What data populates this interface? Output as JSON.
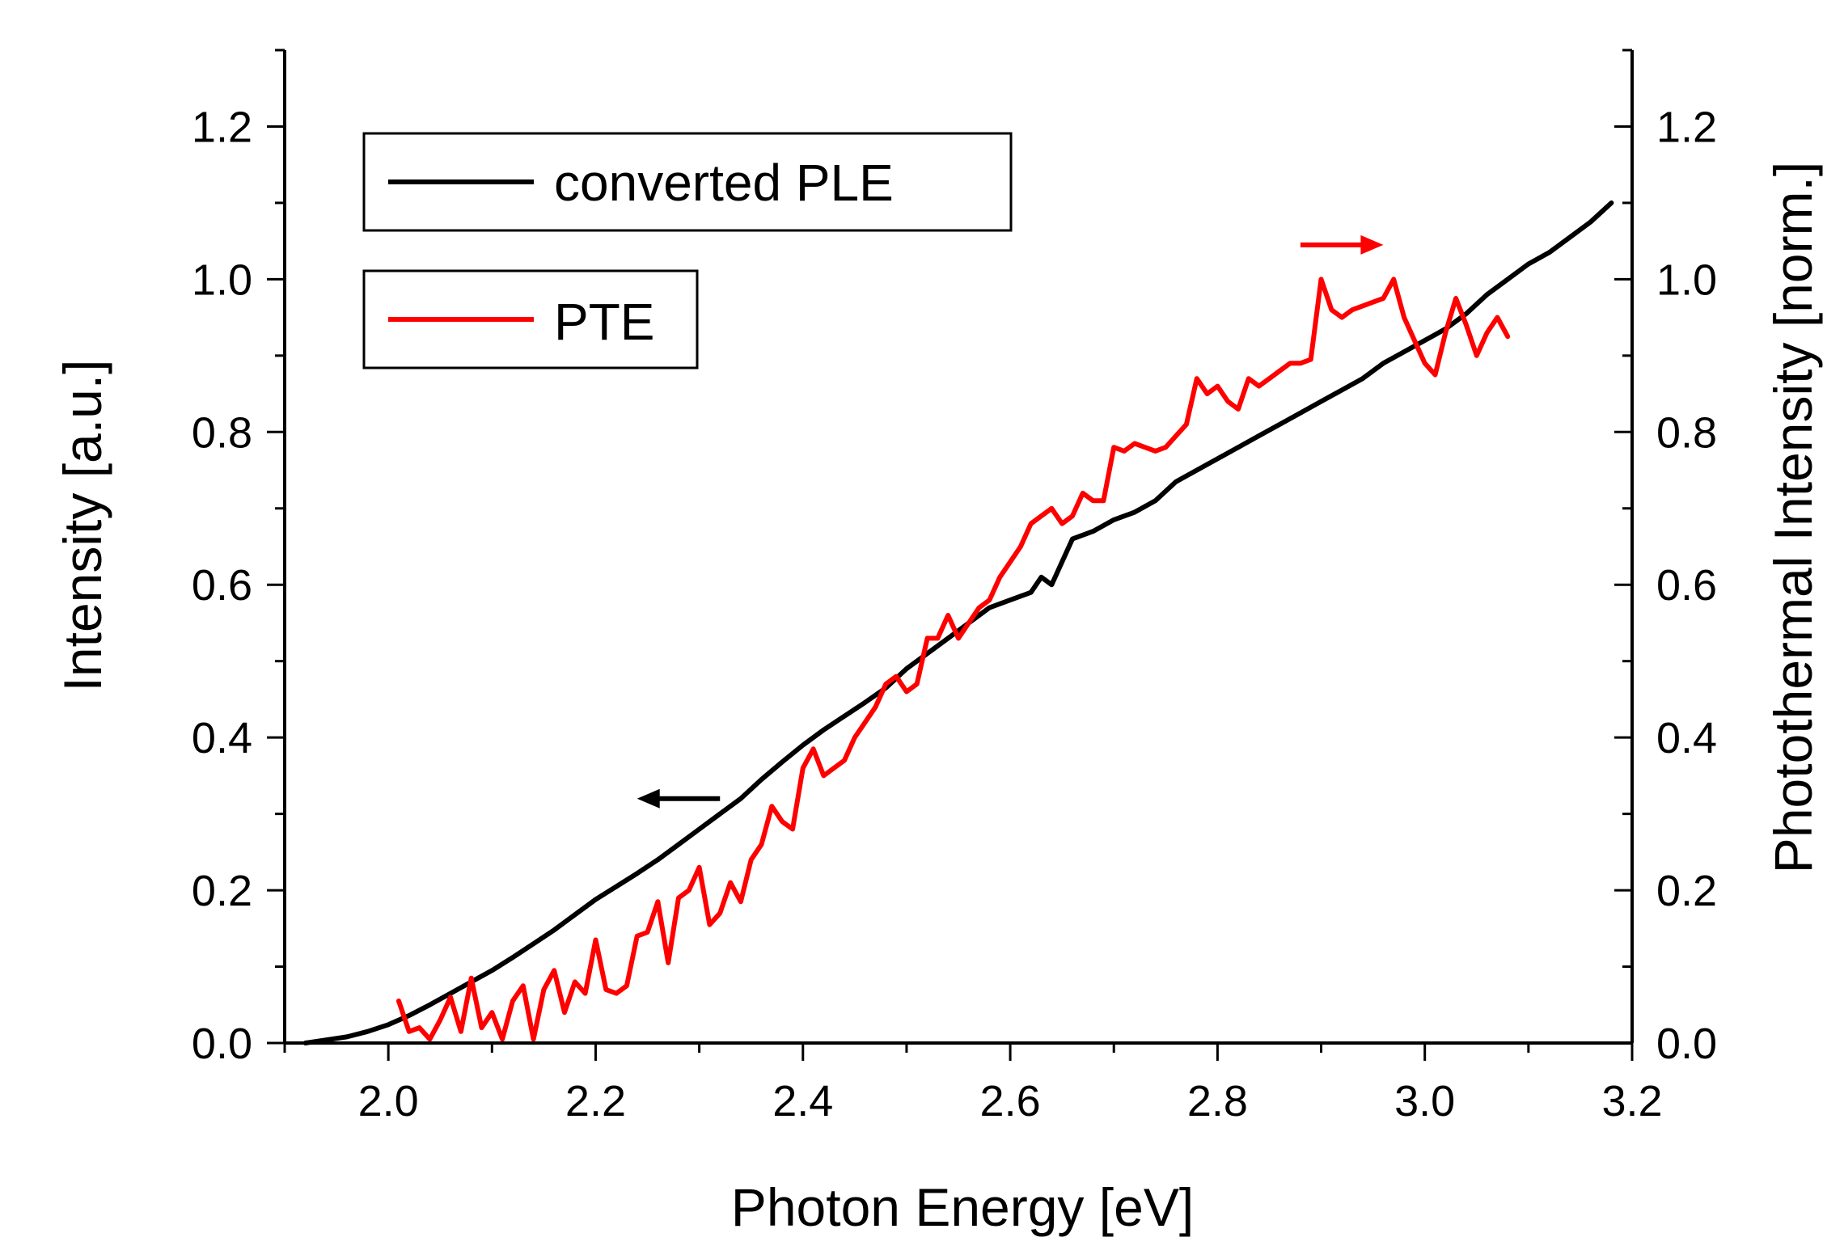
{
  "chart_data": {
    "type": "line",
    "title": "",
    "xlabel": "Photon Energy [eV]",
    "ylabel": "Intensity [a.u.]",
    "ylabel_right": "Photothermal Intensity [norm.]",
    "xlim": [
      1.9,
      3.2
    ],
    "ylim": [
      0.0,
      1.3
    ],
    "ylim_right": [
      0.0,
      1.3
    ],
    "x_ticks": [
      "2.0",
      "2.2",
      "2.4",
      "2.6",
      "2.8",
      "3.0",
      "3.2"
    ],
    "y_ticks": [
      "0.0",
      "0.2",
      "0.4",
      "0.6",
      "0.8",
      "1.0",
      "1.2"
    ],
    "y_ticks_right": [
      "0.0",
      "0.2",
      "0.4",
      "0.6",
      "0.8",
      "1.0",
      "1.2"
    ],
    "legend": [
      "converted PLE",
      "PTE"
    ],
    "legend_position": "top-left",
    "grid": false,
    "annotations": [
      {
        "type": "arrow",
        "direction": "left",
        "series": "converted PLE",
        "axis": "left",
        "x_from": 2.32,
        "x_to": 2.24,
        "y": 0.32
      },
      {
        "type": "arrow",
        "direction": "right",
        "series": "PTE",
        "axis": "right",
        "x_from": 2.88,
        "x_to": 2.96,
        "y": 1.045
      }
    ],
    "series": [
      {
        "name": "converted PLE",
        "color": "#000000",
        "axis": "left",
        "x": [
          1.92,
          1.94,
          1.96,
          1.98,
          2.0,
          2.02,
          2.04,
          2.06,
          2.08,
          2.1,
          2.12,
          2.14,
          2.16,
          2.18,
          2.2,
          2.22,
          2.24,
          2.26,
          2.28,
          2.3,
          2.32,
          2.34,
          2.36,
          2.38,
          2.4,
          2.42,
          2.44,
          2.46,
          2.48,
          2.5,
          2.52,
          2.54,
          2.56,
          2.58,
          2.6,
          2.62,
          2.63,
          2.64,
          2.66,
          2.68,
          2.7,
          2.72,
          2.74,
          2.76,
          2.78,
          2.8,
          2.82,
          2.84,
          2.86,
          2.88,
          2.9,
          2.92,
          2.94,
          2.96,
          2.98,
          3.0,
          3.02,
          3.04,
          3.06,
          3.08,
          3.1,
          3.12,
          3.14,
          3.16,
          3.18
        ],
        "y": [
          0.0,
          0.004,
          0.008,
          0.015,
          0.024,
          0.036,
          0.05,
          0.065,
          0.08,
          0.095,
          0.112,
          0.13,
          0.148,
          0.168,
          0.188,
          0.205,
          0.222,
          0.24,
          0.26,
          0.28,
          0.3,
          0.32,
          0.345,
          0.368,
          0.39,
          0.41,
          0.428,
          0.446,
          0.465,
          0.49,
          0.51,
          0.53,
          0.55,
          0.57,
          0.58,
          0.59,
          0.61,
          0.6,
          0.66,
          0.67,
          0.685,
          0.695,
          0.71,
          0.735,
          0.75,
          0.765,
          0.78,
          0.795,
          0.81,
          0.825,
          0.84,
          0.855,
          0.87,
          0.89,
          0.905,
          0.92,
          0.935,
          0.955,
          0.98,
          1.0,
          1.02,
          1.035,
          1.055,
          1.075,
          1.1
        ]
      },
      {
        "name": "PTE",
        "color": "#ff0000",
        "axis": "right",
        "x": [
          2.01,
          2.02,
          2.03,
          2.04,
          2.05,
          2.06,
          2.07,
          2.08,
          2.09,
          2.1,
          2.11,
          2.12,
          2.13,
          2.14,
          2.15,
          2.16,
          2.17,
          2.18,
          2.19,
          2.2,
          2.21,
          2.22,
          2.23,
          2.24,
          2.25,
          2.26,
          2.27,
          2.28,
          2.29,
          2.3,
          2.31,
          2.32,
          2.33,
          2.34,
          2.35,
          2.36,
          2.37,
          2.38,
          2.39,
          2.4,
          2.41,
          2.42,
          2.43,
          2.44,
          2.45,
          2.46,
          2.47,
          2.48,
          2.49,
          2.5,
          2.51,
          2.52,
          2.53,
          2.54,
          2.55,
          2.56,
          2.57,
          2.58,
          2.59,
          2.6,
          2.61,
          2.62,
          2.63,
          2.64,
          2.65,
          2.66,
          2.67,
          2.68,
          2.69,
          2.7,
          2.71,
          2.72,
          2.73,
          2.74,
          2.75,
          2.76,
          2.77,
          2.78,
          2.79,
          2.8,
          2.81,
          2.82,
          2.83,
          2.84,
          2.85,
          2.86,
          2.87,
          2.88,
          2.89,
          2.9,
          2.91,
          2.92,
          2.93,
          2.94,
          2.95,
          2.96,
          2.97,
          2.98,
          2.99,
          3.0,
          3.01,
          3.02,
          3.03,
          3.04,
          3.05,
          3.06,
          3.07,
          3.08
        ],
        "y": [
          0.055,
          0.015,
          0.02,
          0.005,
          0.03,
          0.06,
          0.015,
          0.085,
          0.02,
          0.04,
          0.005,
          0.055,
          0.075,
          0.005,
          0.07,
          0.095,
          0.04,
          0.08,
          0.065,
          0.135,
          0.07,
          0.065,
          0.075,
          0.14,
          0.145,
          0.185,
          0.105,
          0.19,
          0.2,
          0.23,
          0.155,
          0.17,
          0.21,
          0.185,
          0.24,
          0.26,
          0.31,
          0.29,
          0.28,
          0.36,
          0.385,
          0.35,
          0.36,
          0.37,
          0.4,
          0.42,
          0.44,
          0.47,
          0.48,
          0.46,
          0.47,
          0.53,
          0.53,
          0.56,
          0.53,
          0.55,
          0.57,
          0.58,
          0.61,
          0.63,
          0.65,
          0.68,
          0.69,
          0.7,
          0.68,
          0.69,
          0.72,
          0.71,
          0.71,
          0.78,
          0.775,
          0.785,
          0.78,
          0.775,
          0.78,
          0.795,
          0.81,
          0.87,
          0.85,
          0.86,
          0.84,
          0.83,
          0.87,
          0.86,
          0.87,
          0.88,
          0.89,
          0.89,
          0.895,
          1.0,
          0.96,
          0.95,
          0.96,
          0.965,
          0.97,
          0.975,
          1.0,
          0.95,
          0.92,
          0.89,
          0.875,
          0.93,
          0.975,
          0.94,
          0.9,
          0.93,
          0.95,
          0.925
        ]
      }
    ]
  }
}
